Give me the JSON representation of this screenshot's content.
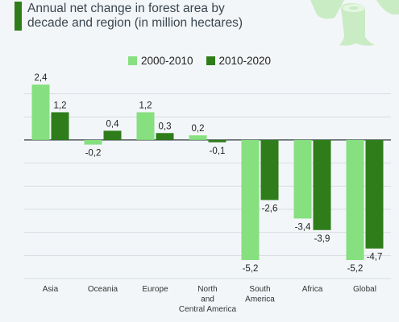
{
  "header": {
    "title_line1": "Annual net change in forest area by",
    "title_line2": "decade and region (in million hectares)"
  },
  "colors": {
    "series1": "#86e07f",
    "series2": "#2e7d1a",
    "accent": "#2e7d1a",
    "grid": "#d6dde3",
    "deco": "#c9ecc4"
  },
  "chart_data": {
    "type": "bar",
    "categories": [
      "Asia",
      "Oceania",
      "Europe",
      "North and Central America",
      "South America",
      "Africa",
      "Global"
    ],
    "category_label_lines": [
      [
        "Asia"
      ],
      [
        "Oceania"
      ],
      [
        "Europe"
      ],
      [
        "North",
        "and",
        "Central America"
      ],
      [
        "South",
        "America"
      ],
      [
        "Africa"
      ],
      [
        "Global"
      ]
    ],
    "series": [
      {
        "name": "2000-2010",
        "values": [
          2.4,
          -0.2,
          1.2,
          0.2,
          -5.2,
          -3.4,
          -5.2
        ],
        "labels": [
          "2,4",
          "-0,2",
          "1,2",
          "0,2",
          "-5,2",
          "-3,4",
          "-5,2"
        ]
      },
      {
        "name": "2010-2020",
        "values": [
          1.2,
          0.4,
          0.3,
          -0.1,
          -2.6,
          -3.9,
          -4.7
        ],
        "labels": [
          "1,2",
          "0,4",
          "0,3",
          "-0,1",
          "-2,6",
          "-3,9",
          "-4,7"
        ]
      }
    ],
    "ylim": [
      -6,
      2.75
    ],
    "grid": true,
    "legend": "top-center",
    "xlabel": "",
    "ylabel": ""
  }
}
